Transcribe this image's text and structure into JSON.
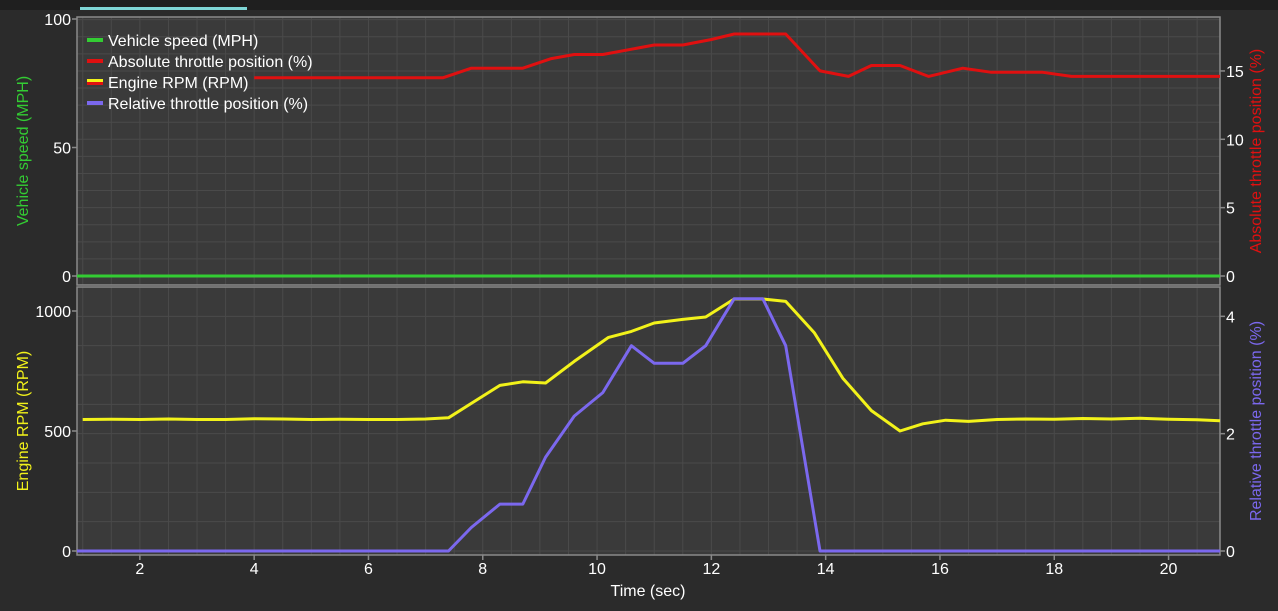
{
  "colors": {
    "background": "#2b2b2b",
    "panel": "#3a3a3a",
    "grid": "#4a4a4a",
    "axis": "#8a8a8a",
    "tab_indicator": "#7fd6d6",
    "speed": "#33cc33",
    "abs_throttle": "#e01010",
    "rpm": "#f2f21a",
    "rel_throttle": "#7b68ee"
  },
  "chart_data": {
    "type": "line",
    "xlabel": "Time (sec)",
    "xlim": [
      0.9,
      20.9
    ],
    "xticks": [
      2,
      4,
      6,
      8,
      10,
      12,
      14,
      16,
      18,
      20
    ],
    "grid": true,
    "legend_position": "top-left",
    "panels": [
      {
        "ylabel_left": "Vehicle speed (MPH)",
        "ylabel_right": "Absolute throttle position (%)",
        "ylim_left": [
          0,
          100
        ],
        "ylim_right": [
          0,
          18.8
        ],
        "yticks_left": [
          0,
          50,
          100
        ],
        "yticks_right": [
          0,
          5,
          10,
          15
        ],
        "legend": [
          {
            "label": "Vehicle speed (MPH)",
            "color": "#33cc33"
          },
          {
            "label": "Absolute throttle position (%)",
            "color": "#e01010"
          },
          {
            "label": "Engine RPM (RPM)",
            "color": "#f2f21a",
            "color2": "#e01010"
          },
          {
            "label": "Relative throttle position (%)",
            "color": "#7b68ee"
          }
        ],
        "series": [
          {
            "name": "Vehicle speed (MPH)",
            "axis": "left",
            "color": "#33cc33",
            "x": [
              0.9,
              20.9
            ],
            "y": [
              0,
              0
            ]
          },
          {
            "name": "Absolute throttle position (%)",
            "axis": "right",
            "color": "#e01010",
            "x": [
              4.0,
              7.3,
              7.8,
              8.7,
              9.2,
              9.6,
              10.1,
              11.0,
              11.5,
              12.0,
              12.4,
              12.9,
              13.3,
              13.9,
              14.4,
              14.8,
              15.3,
              15.8,
              16.4,
              16.9,
              17.8,
              18.3,
              19.0,
              20.9
            ],
            "y": [
              14.5,
              14.5,
              15.2,
              15.2,
              15.9,
              16.2,
              16.2,
              16.9,
              16.9,
              17.3,
              17.7,
              17.7,
              17.7,
              15.0,
              14.6,
              15.4,
              15.4,
              14.6,
              15.2,
              14.9,
              14.9,
              14.6,
              14.6,
              14.6
            ]
          }
        ]
      },
      {
        "ylabel_left": "Engine RPM (RPM)",
        "ylabel_right": "Relative throttle position (%)",
        "ylim_left": [
          0,
          1100
        ],
        "ylim_right": [
          0,
          4.5
        ],
        "yticks_left": [
          0,
          500,
          1000
        ],
        "yticks_right": [
          0,
          2,
          4
        ],
        "series": [
          {
            "name": "Engine RPM (RPM)",
            "axis": "left",
            "color": "#f2f21a",
            "x": [
              1.0,
              1.5,
              2.0,
              2.5,
              3.0,
              3.5,
              4.0,
              4.5,
              5.0,
              5.5,
              6.0,
              6.5,
              7.0,
              7.4,
              7.8,
              8.3,
              8.7,
              9.1,
              9.6,
              10.2,
              10.6,
              11.0,
              11.5,
              11.9,
              12.4,
              12.9,
              13.3,
              13.8,
              14.3,
              14.8,
              15.3,
              15.7,
              16.1,
              16.5,
              17.0,
              17.5,
              18.0,
              18.5,
              19.0,
              19.5,
              20.0,
              20.5,
              20.9
            ],
            "y": [
              548,
              549,
              548,
              550,
              548,
              548,
              551,
              550,
              548,
              549,
              548,
              548,
              550,
              555,
              615,
              690,
              705,
              700,
              790,
              890,
              915,
              950,
              965,
              975,
              1050,
              1050,
              1040,
              910,
              720,
              585,
              500,
              530,
              545,
              540,
              548,
              550,
              549,
              552,
              550,
              553,
              549,
              547,
              543
            ]
          },
          {
            "name": "Relative throttle position (%)",
            "axis": "right",
            "color": "#7b68ee",
            "x": [
              0.9,
              7.4,
              7.8,
              8.3,
              8.7,
              9.1,
              9.6,
              10.1,
              10.6,
              11.0,
              11.5,
              11.9,
              12.4,
              12.9,
              13.3,
              13.9,
              20.9
            ],
            "y": [
              0,
              0,
              0.4,
              0.8,
              0.8,
              1.6,
              2.3,
              2.7,
              3.5,
              3.2,
              3.2,
              3.5,
              4.3,
              4.3,
              3.5,
              0,
              0
            ]
          }
        ]
      }
    ]
  }
}
